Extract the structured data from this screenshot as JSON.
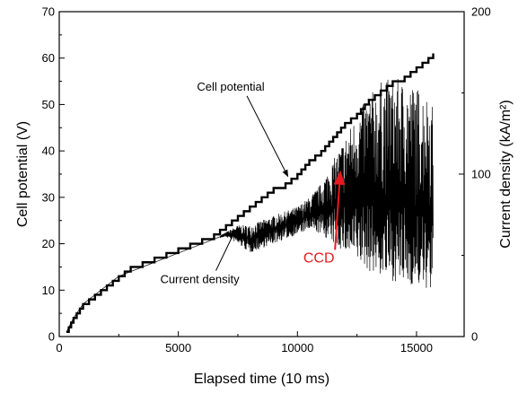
{
  "chart_data": {
    "type": "line",
    "title": "",
    "xlabel": "Elapsed time (10 ms)",
    "ylabel_left": "Cell potential (V)",
    "ylabel_right": "Current density (kA/m²)",
    "xlim": [
      0,
      17000
    ],
    "ylim_left": [
      0,
      70
    ],
    "ylim_right": [
      0,
      200
    ],
    "x_ticks": [
      0,
      5000,
      10000,
      15000
    ],
    "y_left_ticks": [
      0,
      10,
      20,
      30,
      40,
      50,
      60,
      70
    ],
    "y_right_ticks": [
      0,
      100,
      200
    ],
    "grid": false,
    "legend": "none",
    "colors": {
      "series": "#000000",
      "ccd": "#e8191f"
    },
    "series": [
      {
        "name": "Cell potential",
        "axis": "left",
        "x": [
          300,
          600,
          1000,
          1500,
          2000,
          2500,
          3000,
          3500,
          4000,
          4500,
          5000,
          5500,
          6000,
          6500,
          7000,
          7500,
          8000,
          8500,
          9000,
          9500,
          10000,
          10500,
          11000,
          11500,
          12000,
          12500,
          13000,
          13500,
          14000,
          14500,
          15000,
          15500,
          15700
        ],
        "y": [
          1,
          4,
          7,
          9,
          11,
          13,
          15,
          16,
          17,
          18,
          19,
          20,
          21,
          22,
          24,
          26,
          28,
          30,
          32,
          33,
          35,
          38,
          40,
          43,
          46,
          48,
          51,
          53,
          55,
          56,
          58,
          60,
          61
        ]
      },
      {
        "name": "Current density",
        "axis": "left",
        "x": [
          300,
          600,
          1000,
          1500,
          2000,
          2500,
          3000,
          3500,
          4000,
          4500,
          5000,
          5500,
          6000,
          6500,
          7000,
          7500,
          8000,
          8500,
          9000,
          9500,
          10000,
          10500,
          11000,
          11500,
          12000,
          12500,
          13000,
          13500,
          14000,
          14500,
          15000,
          15500,
          15700
        ],
        "y": [
          1,
          4,
          7,
          9,
          11,
          13,
          14,
          15,
          16,
          17,
          18,
          19,
          20,
          21,
          22,
          22,
          21,
          22,
          23,
          24,
          25,
          26,
          27,
          28,
          29,
          30,
          30,
          29,
          28,
          28,
          27,
          27,
          27
        ],
        "envelope_upper": [
          1,
          4,
          7,
          9,
          11,
          13,
          14,
          15,
          16,
          17,
          18,
          19,
          20,
          21,
          22.5,
          24,
          24,
          25,
          26,
          27,
          28,
          30,
          33,
          38,
          43,
          48,
          52,
          55,
          56,
          55,
          54,
          52,
          50
        ],
        "envelope_lower": [
          1,
          4,
          7,
          9,
          11,
          13,
          14,
          15,
          16,
          17,
          18,
          19,
          20,
          21,
          21.5,
          20,
          18,
          19,
          20,
          21,
          22,
          23,
          22,
          20,
          18,
          16,
          14,
          13,
          12,
          11,
          11,
          10,
          10
        ]
      }
    ],
    "annotations": [
      {
        "text": "Cell potential",
        "x": 7200,
        "y": 53,
        "arrow_to": [
          9600,
          34.5
        ],
        "color": "#000000"
      },
      {
        "text": "Current density",
        "x": 5900,
        "y": 11.5,
        "arrow_to": [
          7400,
          23
        ],
        "color": "#000000"
      },
      {
        "text": "CCD",
        "x": 10900,
        "y": 16,
        "arrow_to": [
          11800,
          35.5
        ],
        "color": "#e8191f"
      }
    ]
  }
}
